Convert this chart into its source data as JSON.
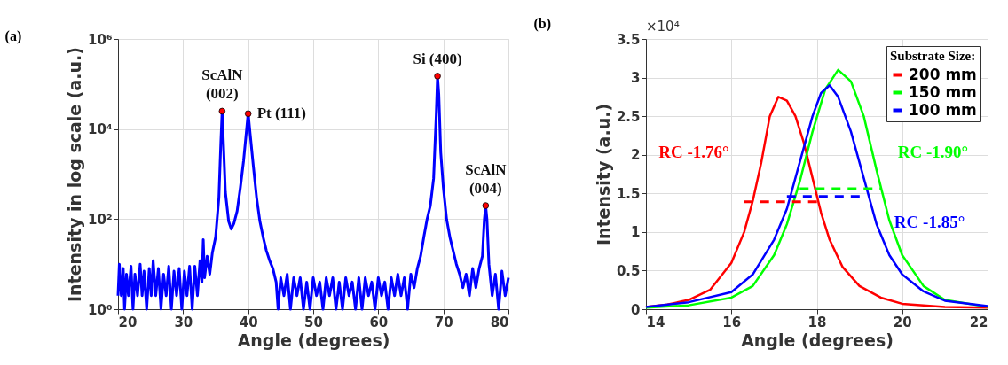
{
  "chart_data": [
    {
      "type": "line",
      "title": "(a)",
      "xlabel": "Angle (degrees)",
      "ylabel": "Intensity in log scale (a.u.)",
      "log": true,
      "grid": true,
      "legend": false,
      "xlim": [
        20,
        80
      ],
      "xticks": [
        20,
        30,
        40,
        50,
        60,
        70,
        80
      ],
      "ylim": [
        1,
        1000000
      ],
      "yticks": [
        {
          "value": 1,
          "label": "10⁰"
        },
        {
          "value": 100,
          "label": "10²"
        },
        {
          "value": 10000,
          "label": "10⁴"
        },
        {
          "value": 1000000,
          "label": "10⁶"
        }
      ],
      "series": [
        {
          "color": "#0000ff",
          "x": [
            20,
            20.2,
            20.5,
            20.8,
            21,
            21.3,
            21.6,
            22,
            22.3,
            22.6,
            23,
            23.4,
            23.7,
            24,
            24.4,
            24.8,
            25.1,
            25.4,
            25.8,
            26.2,
            26.6,
            27,
            27.4,
            27.8,
            28.2,
            28.6,
            29,
            29.4,
            29.8,
            30.2,
            30.6,
            31,
            31.4,
            31.8,
            32.2,
            32.6,
            32.9,
            33.1,
            33.3,
            33.7,
            34.1,
            34.5,
            35,
            35.5,
            35.8,
            36,
            36.2,
            36.5,
            37,
            37.4,
            37.8,
            38.3,
            38.8,
            39.3,
            39.7,
            40,
            40.3,
            40.8,
            41.3,
            41.8,
            42.3,
            42.8,
            43.3,
            43.8,
            44.3,
            44.6,
            45,
            45.5,
            46,
            46.5,
            47,
            47.5,
            48,
            48.5,
            49,
            49.5,
            50,
            50.5,
            51,
            51.5,
            52,
            52.5,
            53,
            53.5,
            54,
            54.5,
            55,
            55.5,
            56,
            56.5,
            57,
            57.5,
            58,
            58.5,
            59,
            59.5,
            60,
            60.5,
            61,
            61.5,
            62,
            62.5,
            63,
            63.5,
            64,
            64.5,
            65,
            65.5,
            66,
            66.5,
            67,
            67.5,
            68,
            68.5,
            68.9,
            69.1,
            69.3,
            69.6,
            70,
            70.5,
            71,
            71.5,
            72,
            72.5,
            73,
            73.5,
            74,
            74.5,
            75,
            75.5,
            76,
            76.3,
            76.5,
            76.7,
            77,
            77.5,
            78,
            78.5,
            79,
            79.5,
            80
          ],
          "values": [
            2,
            10,
            2,
            8,
            1,
            6,
            2,
            9,
            1,
            6,
            2,
            10,
            2,
            7,
            1,
            8,
            2,
            12,
            2,
            8,
            1,
            6,
            2,
            9,
            1,
            7,
            2,
            8,
            1,
            7,
            2,
            9,
            1,
            9,
            2,
            12,
            4,
            35,
            5,
            15,
            6,
            18,
            40,
            300,
            5000,
            25000,
            5000,
            400,
            90,
            60,
            80,
            150,
            500,
            2000,
            8000,
            23000,
            8000,
            1500,
            300,
            90,
            40,
            20,
            12,
            8,
            4,
            1,
            5,
            2,
            6,
            1,
            5,
            2,
            5,
            1,
            4,
            1,
            5,
            2,
            4,
            1,
            5,
            2,
            5,
            1,
            4,
            1,
            5,
            2,
            4,
            1,
            5,
            1,
            5,
            2,
            4,
            1,
            5,
            2,
            4,
            1,
            5,
            2,
            6,
            2,
            5,
            1,
            6,
            3,
            8,
            15,
            40,
            100,
            200,
            800,
            20000,
            150000,
            60000,
            3000,
            500,
            100,
            40,
            20,
            10,
            6,
            3,
            6,
            2,
            8,
            3,
            8,
            15,
            100,
            200,
            100,
            10,
            2,
            6,
            1,
            7,
            2,
            5
          ]
        },
        {
          "type": "scatter",
          "marker": "circle",
          "color": "#ff0000",
          "x": [
            36,
            40,
            69.1,
            76.5
          ],
          "values": [
            25000,
            22000,
            150000,
            200
          ]
        }
      ],
      "annotations": [
        {
          "text": "ScAlN\n(002)",
          "x": 36,
          "y": 25000
        },
        {
          "text": "Pt (111)",
          "x": 40,
          "y": 22000
        },
        {
          "text": "Si (400)",
          "x": 69.1,
          "y": 150000
        },
        {
          "text": "ScAlN\n(004)",
          "x": 76.5,
          "y": 200
        }
      ]
    },
    {
      "type": "line",
      "title": "(b)",
      "xlabel": "Angle (degrees)",
      "ylabel": "Intensity (a.u.)",
      "grid": true,
      "legend": "top right",
      "legend_title": "Substrate Size:",
      "xlim": [
        14,
        22
      ],
      "xticks": [
        14,
        16,
        18,
        20,
        22
      ],
      "ylim": [
        0,
        3.5
      ],
      "yticks": [
        0,
        0.5,
        1,
        1.5,
        2,
        2.5,
        3,
        3.5
      ],
      "series": [
        {
          "name": "200 mm",
          "color": "#ff0000",
          "x": [
            14,
            14.5,
            15,
            15.5,
            16,
            16.3,
            16.5,
            16.7,
            16.9,
            17.1,
            17.3,
            17.5,
            17.7,
            17.9,
            18.1,
            18.3,
            18.6,
            19,
            19.5,
            20,
            21,
            22
          ],
          "values": [
            0.03,
            0.06,
            0.12,
            0.25,
            0.6,
            1,
            1.4,
            1.9,
            2.5,
            2.75,
            2.7,
            2.5,
            2.15,
            1.7,
            1.25,
            0.9,
            0.55,
            0.3,
            0.15,
            0.07,
            0.03,
            0.02
          ]
        },
        {
          "name": "150 mm",
          "color": "#00ff00",
          "x": [
            14,
            15,
            16,
            16.5,
            17,
            17.3,
            17.6,
            17.9,
            18.2,
            18.5,
            18.8,
            19.1,
            19.4,
            19.7,
            20,
            20.5,
            21,
            22
          ],
          "values": [
            0.02,
            0.05,
            0.15,
            0.3,
            0.7,
            1.1,
            1.65,
            2.3,
            2.85,
            3.1,
            2.95,
            2.5,
            1.8,
            1.15,
            0.7,
            0.3,
            0.12,
            0.03
          ]
        },
        {
          "name": "100 mm",
          "color": "#0000ff",
          "x": [
            14,
            15,
            16,
            16.5,
            17,
            17.3,
            17.6,
            17.9,
            18.1,
            18.3,
            18.5,
            18.8,
            19.1,
            19.4,
            19.7,
            20,
            20.5,
            21,
            22
          ],
          "values": [
            0.03,
            0.09,
            0.22,
            0.45,
            0.9,
            1.3,
            1.9,
            2.5,
            2.8,
            2.9,
            2.75,
            2.3,
            1.7,
            1.1,
            0.7,
            0.45,
            0.23,
            0.11,
            0.04
          ]
        },
        {
          "type": "line",
          "line_style": "dashed",
          "color": "#ff0000",
          "x": [
            16.3,
            18.06
          ],
          "values": [
            1.39,
            1.39
          ]
        },
        {
          "type": "line",
          "line_style": "dashed",
          "color": "#00ff00",
          "x": [
            17.6,
            19.5
          ],
          "values": [
            1.56,
            1.56
          ]
        },
        {
          "type": "line",
          "line_style": "dashed",
          "color": "#0000ff",
          "x": [
            17.3,
            19.15
          ],
          "values": [
            1.46,
            1.46
          ]
        }
      ],
      "annotations": [
        "RC -1.76°",
        "RC -1.90°",
        "RC -1.85°",
        "×10⁴"
      ]
    }
  ]
}
